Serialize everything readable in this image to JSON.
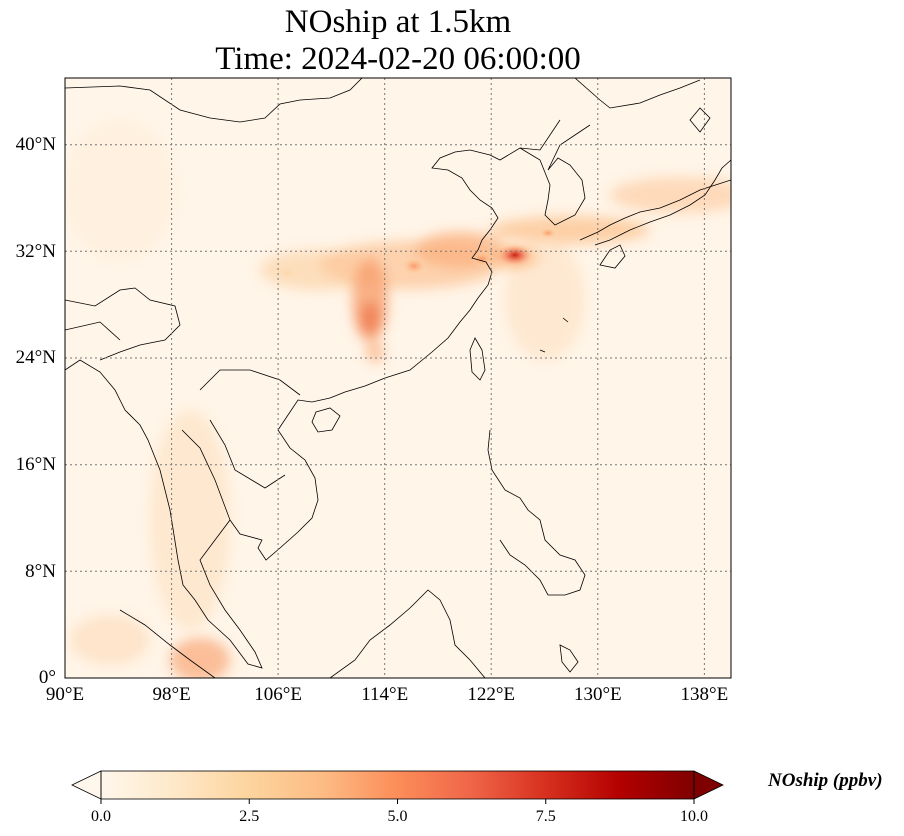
{
  "title": {
    "line1": "NOship at 1.5km",
    "line2": "Time: 2024-02-20 06:00:00"
  },
  "map": {
    "projection": "PlateCarree",
    "lon_range": [
      90,
      140
    ],
    "lat_range": [
      0,
      45
    ],
    "gridlines": "dotted",
    "y_ticks": [
      {
        "lat": 40,
        "label": "40°N"
      },
      {
        "lat": 32,
        "label": "32°N"
      },
      {
        "lat": 24,
        "label": "24°N"
      },
      {
        "lat": 16,
        "label": "16°N"
      },
      {
        "lat": 8,
        "label": "8°N"
      },
      {
        "lat": 0,
        "label": "0°"
      }
    ],
    "x_ticks": [
      {
        "lon": 90,
        "label": "90°E"
      },
      {
        "lon": 98,
        "label": "98°E"
      },
      {
        "lon": 106,
        "label": "106°E"
      },
      {
        "lon": 114,
        "label": "114°E"
      },
      {
        "lon": 122,
        "label": "122°E"
      },
      {
        "lon": 130,
        "label": "130°E"
      },
      {
        "lon": 138,
        "label": "138°E"
      }
    ]
  },
  "colorbar": {
    "label": "NOship (ppbv)",
    "min": 0.0,
    "max": 10.0,
    "colormap": "OrRd",
    "extend": "both",
    "ticks": [
      {
        "value": 0.0,
        "label": "0.0"
      },
      {
        "value": 2.5,
        "label": "2.5"
      },
      {
        "value": 5.0,
        "label": "5.0"
      },
      {
        "value": 7.5,
        "label": "7.5"
      },
      {
        "value": 10.0,
        "label": "10.0"
      }
    ],
    "colors": [
      "#fff7ec",
      "#fee8c8",
      "#fdd49e",
      "#fdbb84",
      "#fc8d59",
      "#ef6548",
      "#d7301f",
      "#b30000",
      "#7f0000"
    ]
  }
}
